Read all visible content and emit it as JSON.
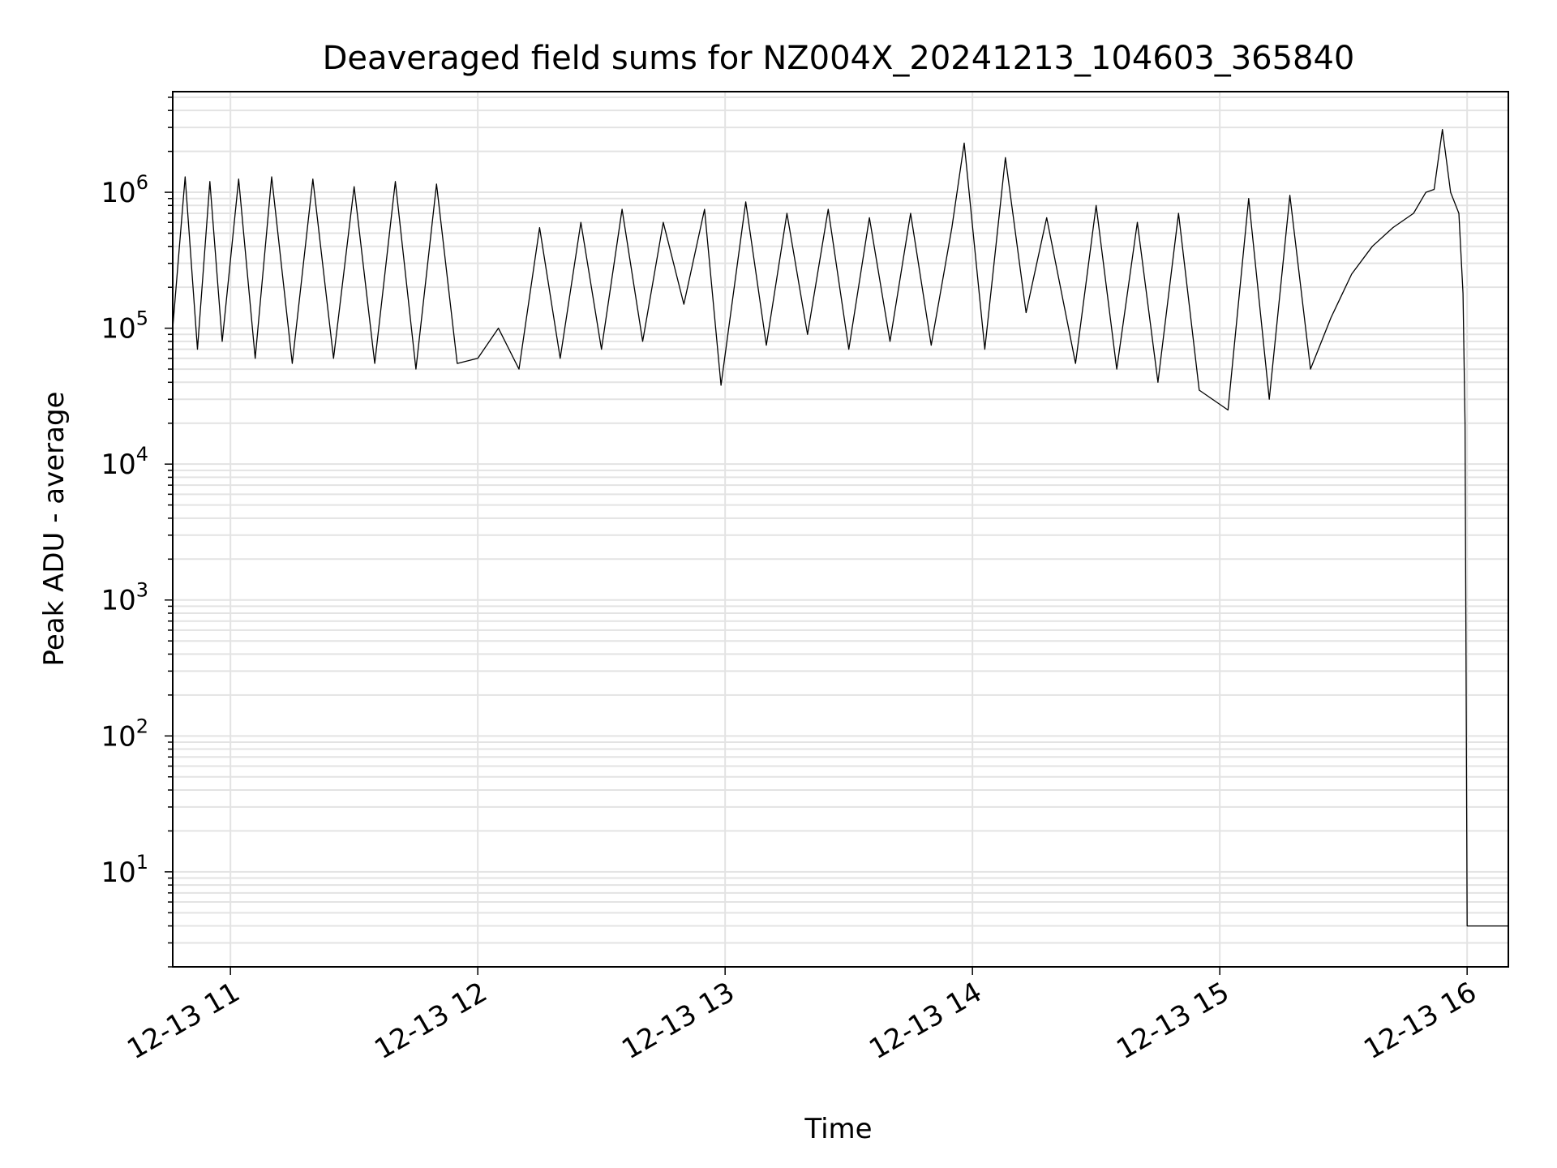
{
  "chart_data": {
    "type": "line",
    "title": "Deaveraged field sums for NZ004X_20241213_104603_365840",
    "xlabel": "Time",
    "ylabel": "Peak ADU - average",
    "yscale": "log",
    "ylim": [
      2,
      5500000
    ],
    "xlim": [
      "2024-12-13T10:46:00",
      "2024-12-13T16:10:00"
    ],
    "grid": true,
    "line_color": "#000000",
    "grid_color": "#e3e3e3",
    "x_ticks": [
      {
        "value": "2024-12-13T11:00:00",
        "label": "12-13 11"
      },
      {
        "value": "2024-12-13T12:00:00",
        "label": "12-13 12"
      },
      {
        "value": "2024-12-13T13:00:00",
        "label": "12-13 13"
      },
      {
        "value": "2024-12-13T14:00:00",
        "label": "12-13 14"
      },
      {
        "value": "2024-12-13T15:00:00",
        "label": "12-13 15"
      },
      {
        "value": "2024-12-13T16:00:00",
        "label": "12-13 16"
      }
    ],
    "y_ticks": [
      {
        "value": 10,
        "base": "10",
        "exp": "1"
      },
      {
        "value": 100,
        "base": "10",
        "exp": "2"
      },
      {
        "value": 1000,
        "base": "10",
        "exp": "3"
      },
      {
        "value": 10000,
        "base": "10",
        "exp": "4"
      },
      {
        "value": 100000,
        "base": "10",
        "exp": "5"
      },
      {
        "value": 1000000,
        "base": "10",
        "exp": "6"
      }
    ],
    "series": [
      {
        "x": [
          "2024-12-13T10:46:00",
          "2024-12-13T10:49:00",
          "2024-12-13T10:52:00",
          "2024-12-13T10:55:00",
          "2024-12-13T10:58:00",
          "2024-12-13T11:02:00",
          "2024-12-13T11:06:00",
          "2024-12-13T11:10:00",
          "2024-12-13T11:15:00",
          "2024-12-13T11:20:00",
          "2024-12-13T11:25:00",
          "2024-12-13T11:30:00",
          "2024-12-13T11:35:00",
          "2024-12-13T11:40:00",
          "2024-12-13T11:45:00",
          "2024-12-13T11:50:00",
          "2024-12-13T11:55:00",
          "2024-12-13T12:00:00",
          "2024-12-13T12:05:00",
          "2024-12-13T12:10:00",
          "2024-12-13T12:15:00",
          "2024-12-13T12:20:00",
          "2024-12-13T12:25:00",
          "2024-12-13T12:30:00",
          "2024-12-13T12:35:00",
          "2024-12-13T12:40:00",
          "2024-12-13T12:45:00",
          "2024-12-13T12:50:00",
          "2024-12-13T12:55:00",
          "2024-12-13T12:59:00",
          "2024-12-13T13:05:00",
          "2024-12-13T13:10:00",
          "2024-12-13T13:15:00",
          "2024-12-13T13:20:00",
          "2024-12-13T13:25:00",
          "2024-12-13T13:30:00",
          "2024-12-13T13:35:00",
          "2024-12-13T13:40:00",
          "2024-12-13T13:45:00",
          "2024-12-13T13:50:00",
          "2024-12-13T13:55:00",
          "2024-12-13T13:58:00",
          "2024-12-13T14:03:00",
          "2024-12-13T14:08:00",
          "2024-12-13T14:13:00",
          "2024-12-13T14:18:00",
          "2024-12-13T14:25:00",
          "2024-12-13T14:30:00",
          "2024-12-13T14:35:00",
          "2024-12-13T14:40:00",
          "2024-12-13T14:45:00",
          "2024-12-13T14:50:00",
          "2024-12-13T14:55:00",
          "2024-12-13T15:02:00",
          "2024-12-13T15:07:00",
          "2024-12-13T15:12:00",
          "2024-12-13T15:17:00",
          "2024-12-13T15:22:00",
          "2024-12-13T15:27:00",
          "2024-12-13T15:32:00",
          "2024-12-13T15:37:00",
          "2024-12-13T15:42:00",
          "2024-12-13T15:47:00",
          "2024-12-13T15:50:00",
          "2024-12-13T15:52:00",
          "2024-12-13T15:54:00",
          "2024-12-13T15:56:00",
          "2024-12-13T15:58:00",
          "2024-12-13T15:59:00",
          "2024-12-13T15:59:30",
          "2024-12-13T16:00:00",
          "2024-12-13T16:10:00"
        ],
        "y": [
          100000,
          1300000,
          70000,
          1200000,
          80000,
          1250000,
          60000,
          1300000,
          55000,
          1250000,
          60000,
          1100000,
          55000,
          1200000,
          50000,
          1150000,
          55000,
          60000,
          100000,
          50000,
          550000,
          60000,
          600000,
          70000,
          750000,
          80000,
          600000,
          150000,
          750000,
          38000,
          850000,
          75000,
          700000,
          90000,
          750000,
          70000,
          650000,
          80000,
          700000,
          75000,
          550000,
          2300000,
          70000,
          1800000,
          130000,
          650000,
          55000,
          800000,
          50000,
          600000,
          40000,
          700000,
          35000,
          25000,
          900000,
          30000,
          950000,
          50000,
          120000,
          250000,
          400000,
          550000,
          700000,
          1000000,
          1050000,
          2900000,
          1000000,
          700000,
          180000,
          20000,
          4,
          4
        ]
      }
    ]
  }
}
